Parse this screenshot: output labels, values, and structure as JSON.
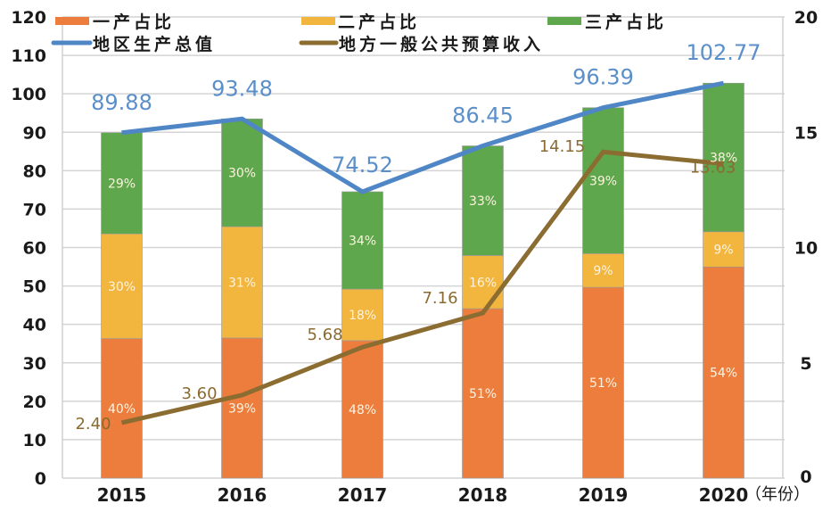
{
  "chart_data": {
    "type": "bar",
    "subtype": "stacked-bar-with-lines-dual-axis",
    "title": "",
    "categories": [
      "2015",
      "2016",
      "2017",
      "2018",
      "2019",
      "2020"
    ],
    "xlabel_unit": "（年份）",
    "left_axis": {
      "min": 0,
      "max": 120,
      "step": 10,
      "ticks": [
        "0",
        "10",
        "20",
        "30",
        "40",
        "50",
        "60",
        "70",
        "80",
        "90",
        "100",
        "110",
        "120"
      ]
    },
    "right_axis": {
      "min": 0,
      "max": 20,
      "step": 5,
      "ticks": [
        "0",
        "5",
        "10",
        "15",
        "20"
      ]
    },
    "grid": true,
    "legend_position": "top",
    "bar_series": [
      {
        "name": "一产占比",
        "color": "#ed7d3d",
        "shares": [
          40,
          39,
          48,
          51,
          51,
          54
        ],
        "labels": [
          "40%",
          "39%",
          "48%",
          "51%",
          "51%",
          "54%"
        ]
      },
      {
        "name": "二产占比",
        "color": "#f2b63f",
        "shares": [
          30,
          31,
          18,
          16,
          9,
          9
        ],
        "labels": [
          "30%",
          "31%",
          "18%",
          "16%",
          "9%",
          "9%"
        ]
      },
      {
        "name": "三产占比",
        "color": "#5fa74c",
        "shares": [
          29,
          30,
          34,
          33,
          39,
          38
        ],
        "labels": [
          "29%",
          "30%",
          "34%",
          "33%",
          "39%",
          "38%"
        ]
      }
    ],
    "line_series": [
      {
        "name": "地区生产总值",
        "color": "#4f86c6",
        "axis": "left",
        "values": [
          89.88,
          93.48,
          74.52,
          86.45,
          96.39,
          102.77
        ],
        "labels": [
          "89.88",
          "93.48",
          "74.52",
          "86.45",
          "96.39",
          "102.77"
        ]
      },
      {
        "name": "地方一般公共预算收入",
        "color": "#8c6d31",
        "axis": "right",
        "values": [
          2.4,
          3.6,
          5.68,
          7.16,
          14.15,
          13.63
        ],
        "labels": [
          "2.40",
          "3.60",
          "5.68",
          "7.16",
          "14.15",
          "13.63"
        ]
      }
    ]
  }
}
